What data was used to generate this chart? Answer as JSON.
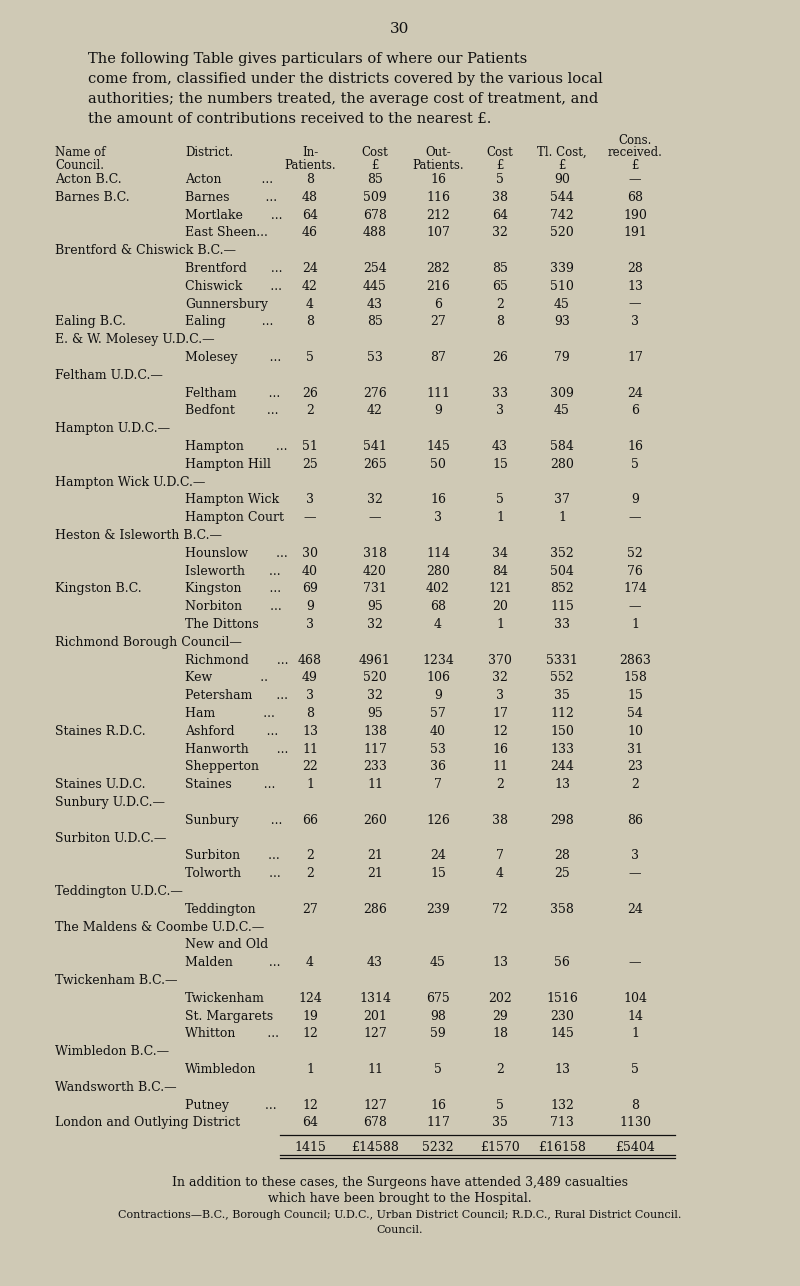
{
  "page_number": "30",
  "intro_lines": [
    "The following Table gives particulars of where our Patients",
    "come from, classified under the districts covered by the various local",
    "authorities; the numbers treated, the average cost of treatment, and",
    "the amount of contributions received to the nearest £."
  ],
  "rows": [
    {
      "council": "Acton B.C.",
      "district": "Acton          ...",
      "in_pat": "8",
      "cost_in": "85",
      "out_pat": "16",
      "cost_out": "5",
      "tl_cost": "90",
      "contrib": "—"
    },
    {
      "council": "Barnes B.C.",
      "district": "Barnes         ...",
      "in_pat": "48",
      "cost_in": "509",
      "out_pat": "116",
      "cost_out": "38",
      "tl_cost": "544",
      "contrib": "68"
    },
    {
      "council": "",
      "district": "Mortlake       ...",
      "in_pat": "64",
      "cost_in": "678",
      "out_pat": "212",
      "cost_out": "64",
      "tl_cost": "742",
      "contrib": "190"
    },
    {
      "council": "",
      "district": "East Sheen...",
      "in_pat": "46",
      "cost_in": "488",
      "out_pat": "107",
      "cost_out": "32",
      "tl_cost": "520",
      "contrib": "191"
    },
    {
      "council": "Brentford & Chiswick B.C.—",
      "district": "",
      "in_pat": "",
      "cost_in": "",
      "out_pat": "",
      "cost_out": "",
      "tl_cost": "",
      "contrib": ""
    },
    {
      "council": "",
      "district": "Brentford      ...",
      "in_pat": "24",
      "cost_in": "254",
      "out_pat": "282",
      "cost_out": "85",
      "tl_cost": "339",
      "contrib": "28"
    },
    {
      "council": "",
      "district": "Chiswick       ...",
      "in_pat": "42",
      "cost_in": "445",
      "out_pat": "216",
      "cost_out": "65",
      "tl_cost": "510",
      "contrib": "13"
    },
    {
      "council": "",
      "district": "Gunnersbury",
      "in_pat": "4",
      "cost_in": "43",
      "out_pat": "6",
      "cost_out": "2",
      "tl_cost": "45",
      "contrib": "—"
    },
    {
      "council": "Ealing B.C.",
      "district": "Ealing         ...",
      "in_pat": "8",
      "cost_in": "85",
      "out_pat": "27",
      "cost_out": "8",
      "tl_cost": "93",
      "contrib": "3"
    },
    {
      "council": "E. & W. Molesey U.D.C.—",
      "district": "",
      "in_pat": "",
      "cost_in": "",
      "out_pat": "",
      "cost_out": "",
      "tl_cost": "",
      "contrib": ""
    },
    {
      "council": "",
      "district": "Molesey        ...",
      "in_pat": "5",
      "cost_in": "53",
      "out_pat": "87",
      "cost_out": "26",
      "tl_cost": "79",
      "contrib": "17"
    },
    {
      "council": "Feltham U.D.C.—",
      "district": "",
      "in_pat": "",
      "cost_in": "",
      "out_pat": "",
      "cost_out": "",
      "tl_cost": "",
      "contrib": ""
    },
    {
      "council": "",
      "district": "Feltham        ...",
      "in_pat": "26",
      "cost_in": "276",
      "out_pat": "111",
      "cost_out": "33",
      "tl_cost": "309",
      "contrib": "24"
    },
    {
      "council": "",
      "district": "Bedfont        ...",
      "in_pat": "2",
      "cost_in": "42",
      "out_pat": "9",
      "cost_out": "3",
      "tl_cost": "45",
      "contrib": "6"
    },
    {
      "council": "Hampton U.D.C.—",
      "district": "",
      "in_pat": "",
      "cost_in": "",
      "out_pat": "",
      "cost_out": "",
      "tl_cost": "",
      "contrib": ""
    },
    {
      "council": "",
      "district": "Hampton        ...",
      "in_pat": "51",
      "cost_in": "541",
      "out_pat": "145",
      "cost_out": "43",
      "tl_cost": "584",
      "contrib": "16"
    },
    {
      "council": "",
      "district": "Hampton Hill",
      "in_pat": "25",
      "cost_in": "265",
      "out_pat": "50",
      "cost_out": "15",
      "tl_cost": "280",
      "contrib": "5"
    },
    {
      "council": "Hampton Wick U.D.C.—",
      "district": "",
      "in_pat": "",
      "cost_in": "",
      "out_pat": "",
      "cost_out": "",
      "tl_cost": "",
      "contrib": ""
    },
    {
      "council": "",
      "district": "Hampton Wick",
      "in_pat": "3",
      "cost_in": "32",
      "out_pat": "16",
      "cost_out": "5",
      "tl_cost": "37",
      "contrib": "9"
    },
    {
      "council": "",
      "district": "Hampton Court",
      "in_pat": "—",
      "cost_in": "—",
      "out_pat": "3",
      "cost_out": "1",
      "tl_cost": "1",
      "contrib": "—"
    },
    {
      "council": "Heston & Isleworth B.C.—",
      "district": "",
      "in_pat": "",
      "cost_in": "",
      "out_pat": "",
      "cost_out": "",
      "tl_cost": "",
      "contrib": ""
    },
    {
      "council": "",
      "district": "Hounslow       ...",
      "in_pat": "30",
      "cost_in": "318",
      "out_pat": "114",
      "cost_out": "34",
      "tl_cost": "352",
      "contrib": "52"
    },
    {
      "council": "",
      "district": "Isleworth      ...",
      "in_pat": "40",
      "cost_in": "420",
      "out_pat": "280",
      "cost_out": "84",
      "tl_cost": "504",
      "contrib": "76"
    },
    {
      "council": "Kingston B.C.",
      "district": "Kingston       ...",
      "in_pat": "69",
      "cost_in": "731",
      "out_pat": "402",
      "cost_out": "121",
      "tl_cost": "852",
      "contrib": "174"
    },
    {
      "council": "",
      "district": "Norbiton       ...",
      "in_pat": "9",
      "cost_in": "95",
      "out_pat": "68",
      "cost_out": "20",
      "tl_cost": "115",
      "contrib": "—"
    },
    {
      "council": "",
      "district": "The Dittons",
      "in_pat": "3",
      "cost_in": "32",
      "out_pat": "4",
      "cost_out": "1",
      "tl_cost": "33",
      "contrib": "1"
    },
    {
      "council": "Richmond Borough Council—",
      "district": "",
      "in_pat": "",
      "cost_in": "",
      "out_pat": "",
      "cost_out": "",
      "tl_cost": "",
      "contrib": ""
    },
    {
      "council": "",
      "district": "Richmond       ...",
      "in_pat": "468",
      "cost_in": "4961",
      "out_pat": "1234",
      "cost_out": "370",
      "tl_cost": "5331",
      "contrib": "2863"
    },
    {
      "council": "",
      "district": "Kew            ..",
      "in_pat": "49",
      "cost_in": "520",
      "out_pat": "106",
      "cost_out": "32",
      "tl_cost": "552",
      "contrib": "158"
    },
    {
      "council": "",
      "district": "Petersham      ...",
      "in_pat": "3",
      "cost_in": "32",
      "out_pat": "9",
      "cost_out": "3",
      "tl_cost": "35",
      "contrib": "15"
    },
    {
      "council": "",
      "district": "Ham            ...",
      "in_pat": "8",
      "cost_in": "95",
      "out_pat": "57",
      "cost_out": "17",
      "tl_cost": "112",
      "contrib": "54"
    },
    {
      "council": "Staines R.D.C.",
      "district": "Ashford        ...",
      "in_pat": "13",
      "cost_in": "138",
      "out_pat": "40",
      "cost_out": "12",
      "tl_cost": "150",
      "contrib": "10"
    },
    {
      "council": "",
      "district": "Hanworth       ...",
      "in_pat": "11",
      "cost_in": "117",
      "out_pat": "53",
      "cost_out": "16",
      "tl_cost": "133",
      "contrib": "31"
    },
    {
      "council": "",
      "district": "Shepperton",
      "in_pat": "22",
      "cost_in": "233",
      "out_pat": "36",
      "cost_out": "11",
      "tl_cost": "244",
      "contrib": "23"
    },
    {
      "council": "Staines U.D.C.",
      "district": "Staines        ...",
      "in_pat": "1",
      "cost_in": "11",
      "out_pat": "7",
      "cost_out": "2",
      "tl_cost": "13",
      "contrib": "2"
    },
    {
      "council": "Sunbury U.D.C.—",
      "district": "",
      "in_pat": "",
      "cost_in": "",
      "out_pat": "",
      "cost_out": "",
      "tl_cost": "",
      "contrib": ""
    },
    {
      "council": "",
      "district": "Sunbury        ...",
      "in_pat": "66",
      "cost_in": "260",
      "out_pat": "126",
      "cost_out": "38",
      "tl_cost": "298",
      "contrib": "86"
    },
    {
      "council": "Surbiton U.D.C.—",
      "district": "",
      "in_pat": "",
      "cost_in": "",
      "out_pat": "",
      "cost_out": "",
      "tl_cost": "",
      "contrib": ""
    },
    {
      "council": "",
      "district": "Surbiton       ...",
      "in_pat": "2",
      "cost_in": "21",
      "out_pat": "24",
      "cost_out": "7",
      "tl_cost": "28",
      "contrib": "3"
    },
    {
      "council": "",
      "district": "Tolworth       ...",
      "in_pat": "2",
      "cost_in": "21",
      "out_pat": "15",
      "cost_out": "4",
      "tl_cost": "25",
      "contrib": "—"
    },
    {
      "council": "Teddington U.D.C.—",
      "district": "",
      "in_pat": "",
      "cost_in": "",
      "out_pat": "",
      "cost_out": "",
      "tl_cost": "",
      "contrib": ""
    },
    {
      "council": "",
      "district": "Teddington",
      "in_pat": "27",
      "cost_in": "286",
      "out_pat": "239",
      "cost_out": "72",
      "tl_cost": "358",
      "contrib": "24"
    },
    {
      "council": "The Maldens & Coombe U.D.C.—",
      "district": "",
      "in_pat": "",
      "cost_in": "",
      "out_pat": "",
      "cost_out": "",
      "tl_cost": "",
      "contrib": ""
    },
    {
      "council": "",
      "district": "New and Old",
      "in_pat": "",
      "cost_in": "",
      "out_pat": "",
      "cost_out": "",
      "tl_cost": "",
      "contrib": ""
    },
    {
      "council": "",
      "district": "Malden         ...",
      "in_pat": "4",
      "cost_in": "43",
      "out_pat": "45",
      "cost_out": "13",
      "tl_cost": "56",
      "contrib": "—"
    },
    {
      "council": "Twickenham B.C.—",
      "district": "",
      "in_pat": "",
      "cost_in": "",
      "out_pat": "",
      "cost_out": "",
      "tl_cost": "",
      "contrib": ""
    },
    {
      "council": "",
      "district": "Twickenham",
      "in_pat": "124",
      "cost_in": "1314",
      "out_pat": "675",
      "cost_out": "202",
      "tl_cost": "1516",
      "contrib": "104"
    },
    {
      "council": "",
      "district": "St. Margarets",
      "in_pat": "19",
      "cost_in": "201",
      "out_pat": "98",
      "cost_out": "29",
      "tl_cost": "230",
      "contrib": "14"
    },
    {
      "council": "",
      "district": "Whitton        ...",
      "in_pat": "12",
      "cost_in": "127",
      "out_pat": "59",
      "cost_out": "18",
      "tl_cost": "145",
      "contrib": "1"
    },
    {
      "council": "Wimbledon B.C.—",
      "district": "",
      "in_pat": "",
      "cost_in": "",
      "out_pat": "",
      "cost_out": "",
      "tl_cost": "",
      "contrib": ""
    },
    {
      "council": "",
      "district": "Wimbledon",
      "in_pat": "1",
      "cost_in": "11",
      "out_pat": "5",
      "cost_out": "2",
      "tl_cost": "13",
      "contrib": "5"
    },
    {
      "council": "Wandsworth B.C.—",
      "district": "",
      "in_pat": "",
      "cost_in": "",
      "out_pat": "",
      "cost_out": "",
      "tl_cost": "",
      "contrib": ""
    },
    {
      "council": "",
      "district": "Putney         ...",
      "in_pat": "12",
      "cost_in": "127",
      "out_pat": "16",
      "cost_out": "5",
      "tl_cost": "132",
      "contrib": "8"
    },
    {
      "council": "London and Outlying District",
      "district": "",
      "in_pat": "64",
      "cost_in": "678",
      "out_pat": "117",
      "cost_out": "35",
      "tl_cost": "713",
      "contrib": "1130"
    }
  ],
  "totals": {
    "in_pat": "1415",
    "cost_in": "£14588",
    "out_pat": "5232",
    "cost_out": "£1570",
    "tl_cost": "£16158",
    "contrib": "£5404"
  },
  "footer1": "In addition to these cases, the Surgeons have attended 3,489 casualties",
  "footer2": "which have been brought to the Hospital.",
  "footer3": "Contractions—B.C., Borough Council; U.D.C., Urban District Council; R.D.C., Rural District Council.",
  "footer4": "Council.",
  "bg_color": "#cfc9b5",
  "text_color": "#111111"
}
